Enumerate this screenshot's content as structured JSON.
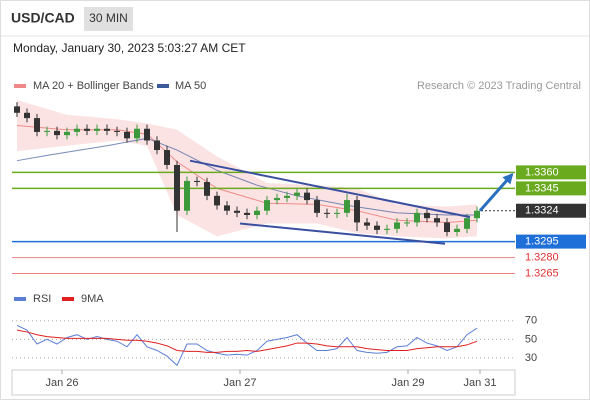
{
  "header": {
    "symbol": "USD/CAD",
    "interval": "30 MIN",
    "timestamp": "Monday, January 30, 2023 5:03:27 AM CET"
  },
  "chart_data": [
    {
      "type": "candlestick",
      "credit": "Research © 2023 Trading Central",
      "xlim": [
        -0.5,
        49.5
      ],
      "ylim": [
        1.3258,
        1.3428
      ],
      "up_color": "#3c9a3c",
      "down_color": "#333333",
      "x": [
        0,
        1,
        2,
        3,
        4,
        5,
        6,
        7,
        8,
        9,
        10,
        11,
        12,
        13,
        14,
        15,
        16,
        17,
        18,
        19,
        20,
        21,
        22,
        23,
        24,
        25,
        26,
        27,
        28,
        29,
        30,
        31,
        32,
        33,
        34,
        35,
        36,
        37,
        38,
        39,
        40,
        41,
        42,
        43,
        44,
        45,
        46
      ],
      "open": [
        1.3422,
        1.3416,
        1.3411,
        1.3398,
        1.3399,
        1.3395,
        1.3398,
        1.3401,
        1.3399,
        1.3401,
        1.3399,
        1.3398,
        1.3392,
        1.3401,
        1.339,
        1.3381,
        1.3367,
        1.3324,
        1.3352,
        1.3351,
        1.3338,
        1.3329,
        1.3324,
        1.3322,
        1.332,
        1.3324,
        1.3334,
        1.3336,
        1.3338,
        1.3341,
        1.3334,
        1.3322,
        1.3321,
        1.3322,
        1.3334,
        1.3313,
        1.331,
        1.3306,
        1.3307,
        1.3313,
        1.3313,
        1.3322,
        1.3317,
        1.3313,
        1.3304,
        1.3307,
        1.3317
      ],
      "high": [
        1.3426,
        1.342,
        1.3415,
        1.3403,
        1.3403,
        1.3402,
        1.3405,
        1.3405,
        1.3405,
        1.3405,
        1.3403,
        1.3402,
        1.3405,
        1.3405,
        1.3394,
        1.3385,
        1.3371,
        1.3356,
        1.3356,
        1.3355,
        1.3342,
        1.3333,
        1.3328,
        1.3326,
        1.3328,
        1.3338,
        1.334,
        1.3342,
        1.3345,
        1.3345,
        1.3338,
        1.3326,
        1.3326,
        1.334,
        1.3338,
        1.3317,
        1.3314,
        1.3311,
        1.3317,
        1.3317,
        1.3326,
        1.3326,
        1.3321,
        1.3317,
        1.3311,
        1.3321,
        1.3328
      ],
      "low": [
        1.3412,
        1.3407,
        1.3394,
        1.3394,
        1.3391,
        1.3391,
        1.3394,
        1.3395,
        1.3395,
        1.3395,
        1.3394,
        1.3388,
        1.3388,
        1.3386,
        1.3377,
        1.3363,
        1.3304,
        1.332,
        1.3347,
        1.3334,
        1.3325,
        1.332,
        1.3318,
        1.3316,
        1.3316,
        1.332,
        1.333,
        1.3332,
        1.3334,
        1.333,
        1.3318,
        1.3317,
        1.3317,
        1.3318,
        1.3305,
        1.3306,
        1.3302,
        1.3302,
        1.3303,
        1.3309,
        1.3309,
        1.3313,
        1.3309,
        1.33,
        1.33,
        1.3303,
        1.3313
      ],
      "close": [
        1.3416,
        1.3411,
        1.3398,
        1.3399,
        1.3395,
        1.3398,
        1.3401,
        1.3399,
        1.3401,
        1.3399,
        1.3398,
        1.3392,
        1.3401,
        1.339,
        1.3381,
        1.3367,
        1.3324,
        1.3352,
        1.3351,
        1.3338,
        1.3329,
        1.3324,
        1.3322,
        1.332,
        1.3324,
        1.3334,
        1.3336,
        1.3338,
        1.3341,
        1.3334,
        1.3322,
        1.3321,
        1.3322,
        1.3334,
        1.3313,
        1.331,
        1.3306,
        1.3307,
        1.3313,
        1.3313,
        1.3322,
        1.3317,
        1.3313,
        1.3304,
        1.3307,
        1.3317,
        1.3324
      ],
      "bollinger": {
        "name": "MA 20 + Bollinger Bands",
        "color": "#f08a8a",
        "band_color": "#fbdcdc",
        "x": [
          0,
          5,
          10,
          13,
          16,
          20,
          25,
          30,
          34,
          38,
          43,
          46
        ],
        "upper": [
          1.3428,
          1.3414,
          1.341,
          1.3406,
          1.34,
          1.3375,
          1.335,
          1.3348,
          1.3345,
          1.333,
          1.3328,
          1.333
        ],
        "middle": [
          1.3404,
          1.34,
          1.34,
          1.3396,
          1.337,
          1.3345,
          1.3331,
          1.333,
          1.3324,
          1.3315,
          1.3313,
          1.3315
        ],
        "lower": [
          1.338,
          1.3385,
          1.339,
          1.3385,
          1.332,
          1.33,
          1.3312,
          1.3312,
          1.3303,
          1.33,
          1.3298,
          1.33
        ]
      },
      "ma50": {
        "name": "MA 50",
        "color": "#3a5a9a",
        "x": [
          0,
          3,
          9,
          13,
          16,
          20,
          24,
          28,
          33,
          38,
          43,
          46
        ],
        "values": [
          1.3371,
          1.3376,
          1.3385,
          1.3392,
          1.3381,
          1.3362,
          1.3348,
          1.3338,
          1.3329,
          1.3322,
          1.332,
          1.332
        ]
      },
      "trendline_color": "#3a4fa0",
      "trendlines": [
        {
          "x": [
            17.3,
            45.3
          ],
          "y": [
            1.3371,
            1.3318
          ]
        },
        {
          "x": [
            22.3,
            42.8
          ],
          "y": [
            1.3312,
            1.3293
          ]
        }
      ],
      "arrow": {
        "x": [
          46.3,
          49.5
        ],
        "y": [
          1.3324,
          1.3358
        ],
        "color": "#2a6fc0"
      },
      "levels": [
        {
          "value": 1.336,
          "label": "1.3360",
          "color": "#6aaa1e",
          "box": true,
          "line": "solid"
        },
        {
          "value": 1.3345,
          "label": "1.3345",
          "color": "#6aaa1e",
          "box": true,
          "line": "solid"
        },
        {
          "value": 1.3324,
          "label": "1.3324",
          "color": "#333333",
          "box": true,
          "line": "dotted"
        },
        {
          "value": 1.3295,
          "label": "1.3295",
          "color": "#1f6fd8",
          "box": true,
          "line": "solid"
        },
        {
          "value": 1.328,
          "label": "1.3280",
          "color": "#e03030",
          "box": false,
          "line": "solid"
        },
        {
          "value": 1.3265,
          "label": "1.3265",
          "color": "#e03030",
          "box": false,
          "line": "solid"
        }
      ]
    },
    {
      "type": "line",
      "xlim": [
        -0.5,
        49.5
      ],
      "ylim": [
        17,
        87
      ],
      "yticks": [
        30,
        50,
        70
      ],
      "xticks": [
        {
          "value": 4.5,
          "label": "Jan 26"
        },
        {
          "value": 22.3,
          "label": "Jan 27"
        },
        {
          "value": 39.1,
          "label": "Jan 29"
        },
        {
          "value": 46.3,
          "label": "Jan 31"
        }
      ],
      "x": [
        0,
        1,
        2,
        3,
        4,
        5,
        6,
        7,
        8,
        9,
        10,
        11,
        12,
        13,
        14,
        15,
        16,
        17,
        18,
        19,
        20,
        21,
        22,
        23,
        24,
        25,
        26,
        27,
        28,
        29,
        30,
        31,
        32,
        33,
        34,
        35,
        36,
        37,
        38,
        39,
        40,
        41,
        42,
        43,
        44,
        45,
        46
      ],
      "series": [
        {
          "name": "RSI",
          "color": "#5b7fd6",
          "values": [
            65,
            60,
            45,
            50,
            45,
            52,
            55,
            50,
            53,
            50,
            48,
            42,
            55,
            42,
            38,
            32,
            22,
            45,
            45,
            38,
            35,
            33,
            34,
            33,
            38,
            48,
            50,
            52,
            55,
            46,
            38,
            38,
            40,
            52,
            38,
            36,
            35,
            36,
            42,
            43,
            52,
            46,
            43,
            38,
            42,
            55,
            62
          ]
        },
        {
          "name": "9MA",
          "color": "#e02020",
          "values": [
            60,
            58,
            55,
            53,
            52,
            51,
            51,
            51,
            51,
            51,
            50,
            49,
            49,
            48,
            46,
            43,
            38,
            37,
            37,
            36,
            36,
            37,
            37,
            38,
            37,
            39,
            41,
            43,
            46,
            46,
            45,
            43,
            42,
            42,
            42,
            40,
            39,
            38,
            38,
            38,
            40,
            41,
            42,
            42,
            42,
            44,
            48
          ]
        }
      ]
    }
  ]
}
